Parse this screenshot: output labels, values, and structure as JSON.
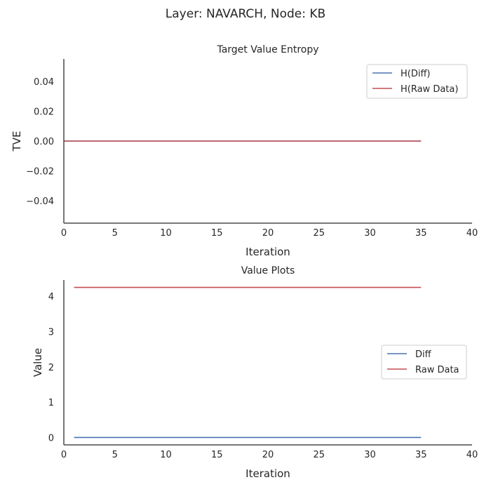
{
  "figure": {
    "suptitle": "Layer: NAVARCH, Node: KB"
  },
  "chart_data": [
    {
      "type": "line",
      "title": "Target Value Entropy",
      "xlabel": "Iteration",
      "ylabel": "TVE",
      "xlim": [
        0,
        40
      ],
      "ylim": [
        -0.055,
        0.055
      ],
      "xticks": [
        0,
        5,
        10,
        15,
        20,
        25,
        30,
        35,
        40
      ],
      "xtick_labels": [
        "0",
        "5",
        "10",
        "15",
        "20",
        "25",
        "30",
        "35",
        "40"
      ],
      "yticks": [
        -0.04,
        -0.02,
        0.0,
        0.02,
        0.04
      ],
      "ytick_labels": [
        "−0.04",
        "−0.02",
        "0.00",
        "0.02",
        "0.04"
      ],
      "grid": false,
      "legend": "top-right",
      "series": [
        {
          "name": "H(Diff)",
          "color": "#4c72b0",
          "x": [
            0,
            35
          ],
          "y": [
            0.0,
            0.0
          ]
        },
        {
          "name": "H(Raw Data)",
          "color": "#c44e52",
          "x": [
            0,
            35
          ],
          "y": [
            0.0,
            0.0
          ]
        }
      ]
    },
    {
      "type": "line",
      "title": "Value Plots",
      "xlabel": "Iteration",
      "ylabel": "Value",
      "xlim": [
        0,
        40
      ],
      "ylim": [
        -0.21,
        4.46
      ],
      "xticks": [
        0,
        5,
        10,
        15,
        20,
        25,
        30,
        35,
        40
      ],
      "xtick_labels": [
        "0",
        "5",
        "10",
        "15",
        "20",
        "25",
        "30",
        "35",
        "40"
      ],
      "yticks": [
        0,
        1,
        2,
        3,
        4
      ],
      "ytick_labels": [
        "0",
        "1",
        "2",
        "3",
        "4"
      ],
      "grid": false,
      "legend": "center-right",
      "series": [
        {
          "name": "Diff",
          "color": "#4c72b0",
          "x": [
            1,
            35
          ],
          "y": [
            0.0,
            0.0
          ]
        },
        {
          "name": "Raw Data",
          "color": "#c44e52",
          "x": [
            1,
            35
          ],
          "y": [
            4.25,
            4.25
          ]
        }
      ]
    }
  ]
}
